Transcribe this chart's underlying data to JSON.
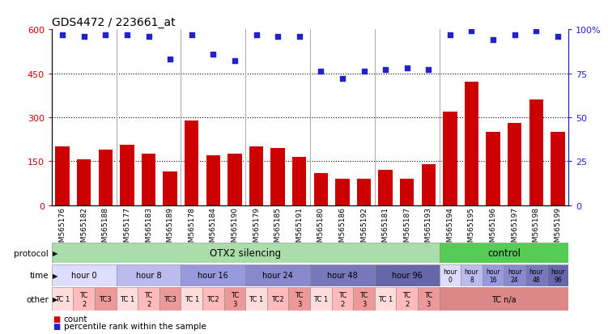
{
  "title": "GDS4472 / 223661_at",
  "samples": [
    "GSM565176",
    "GSM565182",
    "GSM565188",
    "GSM565177",
    "GSM565183",
    "GSM565189",
    "GSM565178",
    "GSM565184",
    "GSM565190",
    "GSM565179",
    "GSM565185",
    "GSM565191",
    "GSM565180",
    "GSM565186",
    "GSM565192",
    "GSM565181",
    "GSM565187",
    "GSM565193",
    "GSM565194",
    "GSM565195",
    "GSM565196",
    "GSM565197",
    "GSM565198",
    "GSM565199"
  ],
  "counts": [
    200,
    155,
    190,
    205,
    175,
    115,
    290,
    170,
    175,
    200,
    195,
    165,
    110,
    90,
    90,
    120,
    90,
    140,
    320,
    420,
    250,
    280,
    360,
    250
  ],
  "percentile": [
    97,
    96,
    97,
    97,
    96,
    83,
    97,
    86,
    82,
    97,
    96,
    96,
    76,
    72,
    76,
    77,
    78,
    77,
    97,
    99,
    94,
    97,
    99,
    96
  ],
  "ylim_left": [
    0,
    600
  ],
  "ylim_right": [
    0,
    100
  ],
  "yticks_left": [
    0,
    150,
    300,
    450,
    600
  ],
  "yticks_right": [
    0,
    25,
    50,
    75,
    100
  ],
  "bar_color": "#cc0000",
  "dot_color": "#2222cc",
  "bg_color": "#ffffff",
  "protocol_row": {
    "otx2_label": "OTX2 silencing",
    "control_label": "control",
    "otx2_color": "#aaddaa",
    "control_color": "#55cc55",
    "otx2_span": [
      0,
      18
    ],
    "control_span": [
      18,
      24
    ]
  },
  "time_row": {
    "groups": [
      {
        "label": "hour 0",
        "span": [
          0,
          3
        ],
        "color": "#ddddff"
      },
      {
        "label": "hour 8",
        "span": [
          3,
          6
        ],
        "color": "#bbbbee"
      },
      {
        "label": "hour 16",
        "span": [
          6,
          9
        ],
        "color": "#9999dd"
      },
      {
        "label": "hour 24",
        "span": [
          9,
          12
        ],
        "color": "#8888cc"
      },
      {
        "label": "hour 48",
        "span": [
          12,
          15
        ],
        "color": "#7777bb"
      },
      {
        "label": "hour 96",
        "span": [
          15,
          18
        ],
        "color": "#6666aa"
      },
      {
        "label": "hour\n0",
        "span": [
          18,
          19
        ],
        "color": "#ddddff"
      },
      {
        "label": "hour\n8",
        "span": [
          19,
          20
        ],
        "color": "#bbbbee"
      },
      {
        "label": "hour\n16",
        "span": [
          20,
          21
        ],
        "color": "#9999dd"
      },
      {
        "label": "hour\n24",
        "span": [
          21,
          22
        ],
        "color": "#8888cc"
      },
      {
        "label": "hour\n48",
        "span": [
          22,
          23
        ],
        "color": "#7777bb"
      },
      {
        "label": "hour\n96",
        "span": [
          23,
          24
        ],
        "color": "#6666aa"
      }
    ]
  },
  "other_row": {
    "cells": [
      {
        "label": "TC 1",
        "span": [
          0,
          1
        ],
        "color": "#ffdddd"
      },
      {
        "label": "TC\n2",
        "span": [
          1,
          2
        ],
        "color": "#ffbbbb"
      },
      {
        "label": "TC3",
        "span": [
          2,
          3
        ],
        "color": "#ee9999"
      },
      {
        "label": "TC 1",
        "span": [
          3,
          4
        ],
        "color": "#ffdddd"
      },
      {
        "label": "TC\n2",
        "span": [
          4,
          5
        ],
        "color": "#ffbbbb"
      },
      {
        "label": "TC3",
        "span": [
          5,
          6
        ],
        "color": "#ee9999"
      },
      {
        "label": "TC 1",
        "span": [
          6,
          7
        ],
        "color": "#ffdddd"
      },
      {
        "label": "TC2",
        "span": [
          7,
          8
        ],
        "color": "#ffbbbb"
      },
      {
        "label": "TC\n3",
        "span": [
          8,
          9
        ],
        "color": "#ee9999"
      },
      {
        "label": "TC 1",
        "span": [
          9,
          10
        ],
        "color": "#ffdddd"
      },
      {
        "label": "TC2",
        "span": [
          10,
          11
        ],
        "color": "#ffbbbb"
      },
      {
        "label": "TC\n3",
        "span": [
          11,
          12
        ],
        "color": "#ee9999"
      },
      {
        "label": "TC 1",
        "span": [
          12,
          13
        ],
        "color": "#ffdddd"
      },
      {
        "label": "TC\n2",
        "span": [
          13,
          14
        ],
        "color": "#ffbbbb"
      },
      {
        "label": "TC\n3",
        "span": [
          14,
          15
        ],
        "color": "#ee9999"
      },
      {
        "label": "TC 1",
        "span": [
          15,
          16
        ],
        "color": "#ffdddd"
      },
      {
        "label": "TC\n2",
        "span": [
          16,
          17
        ],
        "color": "#ffbbbb"
      },
      {
        "label": "TC\n3",
        "span": [
          17,
          18
        ],
        "color": "#ee9999"
      },
      {
        "label": "TC n/a",
        "span": [
          18,
          24
        ],
        "color": "#dd8888"
      }
    ]
  },
  "legend_items": [
    {
      "color": "#cc0000",
      "label": "count"
    },
    {
      "color": "#2222cc",
      "label": "percentile rank within the sample"
    }
  ]
}
